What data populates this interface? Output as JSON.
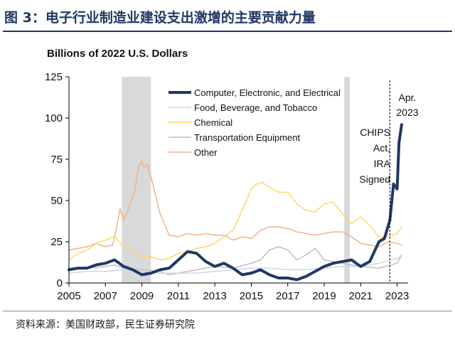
{
  "title": "图 3：电子行业制造业建设支出激增的主要贡献力量",
  "source": "资料来源：美国财政部，民生证券研究院",
  "colors": {
    "computer": "#1f3864",
    "food": "#c9d7ee",
    "chemical": "#ffd966",
    "transport": "#bfbfbf",
    "other": "#f4b183",
    "shade": "#d9d9d9",
    "axis": "#000000",
    "title": "#1f3864"
  },
  "chart_data": {
    "type": "line",
    "ylabel": "Billions of 2022 U.S. Dollars",
    "xlim": [
      2005,
      2023.6
    ],
    "ylim": [
      0,
      125
    ],
    "yticks": [
      0,
      25,
      50,
      75,
      100,
      125
    ],
    "xticks": [
      "2005",
      "2007",
      "2009",
      "2011",
      "2013",
      "2015",
      "2017",
      "2019",
      "2021",
      "2023"
    ],
    "recessions": [
      [
        2007.9,
        2009.5
      ],
      [
        2020.1,
        2020.4
      ]
    ],
    "series": [
      {
        "name": "Computer, Electronic, and Electrical",
        "color_key": "computer",
        "width": 4,
        "x": [
          2005,
          2005.5,
          2006,
          2006.5,
          2007,
          2007.5,
          2008,
          2008.5,
          2009,
          2009.5,
          2010,
          2010.5,
          2011,
          2011.5,
          2012,
          2012.5,
          2013,
          2013.5,
          2014,
          2014.5,
          2015,
          2015.5,
          2016,
          2016.5,
          2017,
          2017.5,
          2018,
          2018.5,
          2019,
          2019.5,
          2020,
          2020.5,
          2021,
          2021.5,
          2022,
          2022.3,
          2022.6,
          2022.8,
          2023,
          2023.1,
          2023.25
        ],
        "y": [
          8,
          9,
          9,
          11,
          12,
          14,
          10,
          8,
          5,
          6,
          8,
          9,
          14,
          19,
          18,
          13,
          10,
          12,
          9,
          5,
          6,
          8,
          5,
          3,
          3,
          2,
          4,
          7,
          10,
          12,
          13,
          14,
          10,
          13,
          25,
          27,
          38,
          60,
          57,
          85,
          96
        ]
      },
      {
        "name": "Food, Beverage, and Tobacco",
        "color_key": "food",
        "width": 1.5,
        "x": [
          2005,
          2006,
          2007,
          2008,
          2009,
          2010,
          2011,
          2012,
          2013,
          2014,
          2015,
          2016,
          2017,
          2018,
          2019,
          2020,
          2021,
          2022,
          2023,
          2023.25
        ],
        "y": [
          6,
          7,
          7,
          8,
          7,
          6,
          6,
          6,
          7,
          8,
          9,
          9,
          8,
          8,
          9,
          10,
          10,
          12,
          15,
          16
        ]
      },
      {
        "name": "Chemical",
        "color_key": "chemical",
        "width": 1.5,
        "x": [
          2005,
          2005.5,
          2006,
          2006.5,
          2007,
          2007.5,
          2008,
          2008.5,
          2009,
          2009.5,
          2010,
          2010.5,
          2011,
          2011.5,
          2012,
          2012.5,
          2013,
          2013.5,
          2014,
          2014.5,
          2015,
          2015.3,
          2015.6,
          2016,
          2016.5,
          2017,
          2017.5,
          2018,
          2018.5,
          2019,
          2019.5,
          2020,
          2020.5,
          2021,
          2021.5,
          2022,
          2022.5,
          2023,
          2023.25
        ],
        "y": [
          14,
          18,
          20,
          24,
          26,
          28,
          22,
          19,
          16,
          16,
          14,
          15,
          18,
          19,
          21,
          22,
          24,
          28,
          32,
          44,
          57,
          60,
          61,
          58,
          55,
          55,
          48,
          44,
          43,
          48,
          49,
          42,
          36,
          40,
          35,
          28,
          28,
          30,
          34
        ]
      },
      {
        "name": "Transportation Equipment",
        "color_key": "transport",
        "width": 1.5,
        "x": [
          2005,
          2006,
          2007,
          2007.5,
          2008,
          2009,
          2010,
          2010.5,
          2011,
          2012,
          2013,
          2014,
          2015,
          2015.5,
          2016,
          2016.5,
          2017,
          2017.5,
          2018,
          2018.5,
          2019,
          2020,
          2021,
          2022,
          2023,
          2023.25
        ],
        "y": [
          9,
          9,
          10,
          11,
          9,
          8,
          7,
          5,
          6,
          8,
          10,
          9,
          12,
          14,
          20,
          22,
          20,
          14,
          17,
          21,
          14,
          12,
          10,
          9,
          12,
          17
        ]
      },
      {
        "name": "Other",
        "color_key": "other",
        "width": 1.5,
        "x": [
          2005,
          2005.5,
          2006,
          2006.5,
          2007,
          2007.4,
          2007.6,
          2007.8,
          2008,
          2008.3,
          2008.6,
          2008.8,
          2009,
          2009.1,
          2009.3,
          2009.6,
          2010,
          2010.5,
          2011,
          2011.5,
          2012,
          2012.5,
          2013,
          2013.5,
          2014,
          2014.5,
          2015,
          2015.5,
          2016,
          2016.5,
          2017,
          2017.5,
          2018,
          2018.5,
          2019,
          2019.5,
          2020,
          2020.5,
          2021,
          2021.5,
          2022,
          2022.5,
          2023,
          2023.25
        ],
        "y": [
          20,
          21,
          22,
          24,
          22,
          23,
          33,
          45,
          38,
          46,
          55,
          70,
          74,
          70,
          72,
          60,
          42,
          29,
          28,
          30,
          29,
          30,
          29,
          29,
          26,
          28,
          27,
          32,
          34,
          34,
          33,
          31,
          30,
          29,
          30,
          31,
          31,
          28,
          24,
          23,
          22,
          25,
          24,
          23
        ]
      }
    ],
    "draw_order": [
      4,
      3,
      1,
      2,
      0
    ],
    "legend": [
      "Computer, Electronic, and Electrical",
      "Food, Beverage, and Tobacco",
      "Chemical",
      "Transportation Equipment",
      "Other"
    ],
    "annotations": {
      "chips": [
        "CHIPS",
        "Act,",
        "IRA",
        "Signed"
      ],
      "latest": [
        "Apr.",
        "2023"
      ],
      "event_x": 2022.6
    }
  }
}
